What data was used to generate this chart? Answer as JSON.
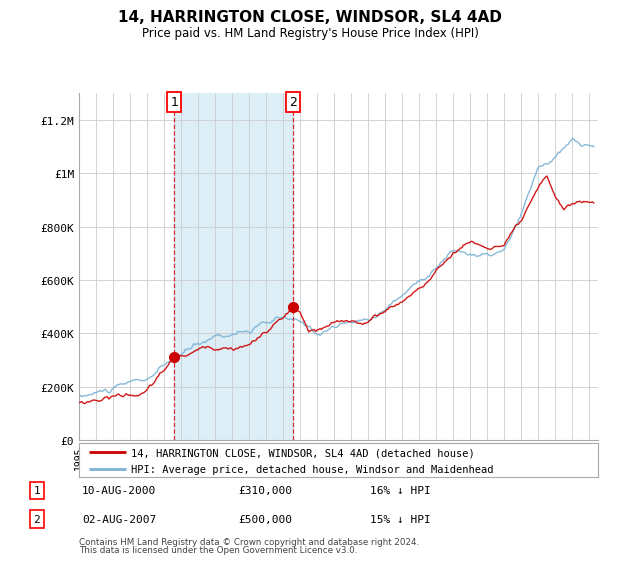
{
  "title": "14, HARRINGTON CLOSE, WINDSOR, SL4 4AD",
  "subtitle": "Price paid vs. HM Land Registry's House Price Index (HPI)",
  "hpi_color": "#7ab3d4",
  "price_color": "#cc0000",
  "shading_color": "#ddeef7",
  "transaction1_x": 2000.6,
  "transaction1_y": 310000,
  "transaction1_label": "1",
  "transaction1_date": "10-AUG-2000",
  "transaction1_price_str": "£310,000",
  "transaction1_pct": "16% ↓ HPI",
  "transaction2_x": 2007.6,
  "transaction2_y": 500000,
  "transaction2_label": "2",
  "transaction2_date": "02-AUG-2007",
  "transaction2_price_str": "£500,000",
  "transaction2_pct": "15% ↓ HPI",
  "shading_start": 2000.6,
  "shading_end": 2007.6,
  "ylim_min": 0,
  "ylim_max": 1300000,
  "xlim_min": 1995,
  "xlim_max": 2025.5,
  "yticks": [
    0,
    200000,
    400000,
    600000,
    800000,
    1000000,
    1200000
  ],
  "ytick_labels": [
    "£0",
    "£200K",
    "£400K",
    "£600K",
    "£800K",
    "£1M",
    "£1.2M"
  ],
  "legend_line1": "14, HARRINGTON CLOSE, WINDSOR, SL4 4AD (detached house)",
  "legend_line2": "HPI: Average price, detached house, Windsor and Maidenhead",
  "footer1": "Contains HM Land Registry data © Crown copyright and database right 2024.",
  "footer2": "This data is licensed under the Open Government Licence v3.0.",
  "bg_color": "#ffffff",
  "grid_color": "#cccccc",
  "hatch_color": "#bbbbbb"
}
